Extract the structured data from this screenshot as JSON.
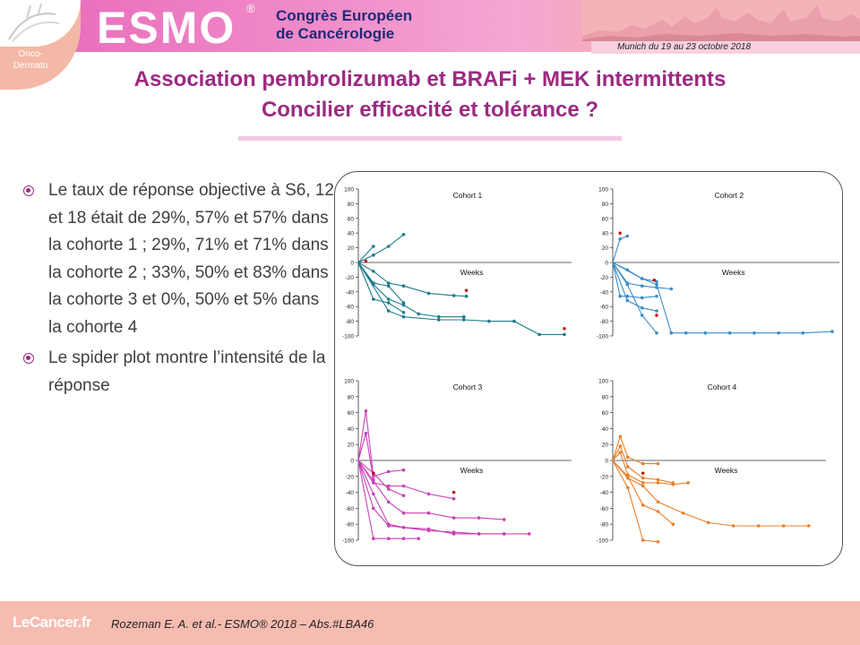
{
  "header": {
    "logo": "ESMO",
    "logo_mark": "®",
    "congress_line1": "Congrès Européen",
    "congress_line2": "de Cancérologie",
    "dates": "Munich du 19 au 23 octobre 2018",
    "corner_label": "Onco-Dermato"
  },
  "title": {
    "line1": "Association pembrolizumab et BRAFi + MEK intermittents",
    "line2": "Concilier efficacité et tolérance ?"
  },
  "bullets": [
    "Le taux de réponse objective à S6, 12 et 18 était de 29%, 57% et 57% dans la cohorte 1 ; 29%, 71% et 71% dans la cohorte 2 ; 33%, 50% et 83% dans la cohorte 3 et 0%, 50% et 5% dans la cohorte 4",
    "Le spider plot montre l’intensité de la réponse"
  ],
  "footer": {
    "logo": "LeCancer.fr",
    "reference": "Rozeman E. A. et al.- ESMO® 2018 – Abs.#LBA46"
  },
  "colors": {
    "title": "#9b2a82",
    "cohort1": "#1c7c8c",
    "cohort2": "#3c8cc8",
    "cohort3": "#c840b8",
    "cohort4": "#e8802c",
    "new_lesion_marker": "#cc0000"
  },
  "chart_data": [
    {
      "type": "line",
      "title": "Cohort 1",
      "xlabel": "Weeks",
      "ylabel": "",
      "ylim": [
        -100,
        100
      ],
      "yticks": [
        100,
        80,
        60,
        40,
        20,
        0,
        -20,
        -40,
        -60,
        -80,
        -100
      ],
      "color": "#1c7c8c",
      "series": [
        {
          "x": [
            0,
            6,
            12,
            18
          ],
          "y": [
            0,
            10,
            22,
            38
          ]
        },
        {
          "x": [
            0,
            6
          ],
          "y": [
            0,
            22
          ]
        },
        {
          "x": [
            0,
            6,
            12,
            18,
            28,
            38,
            43
          ],
          "y": [
            0,
            -12,
            -28,
            -32,
            -42,
            -45,
            -46
          ]
        },
        {
          "x": [
            0,
            6,
            12,
            18
          ],
          "y": [
            0,
            -28,
            -32,
            -55
          ]
        },
        {
          "x": [
            0,
            6,
            12,
            18,
            24,
            32,
            42
          ],
          "y": [
            0,
            -30,
            -50,
            -58,
            -70,
            -74,
            -74
          ]
        },
        {
          "x": [
            0,
            6,
            12,
            18
          ],
          "y": [
            0,
            -50,
            -55,
            -68
          ]
        },
        {
          "x": [
            0,
            12,
            18,
            32,
            42,
            52,
            62,
            72,
            82
          ],
          "y": [
            0,
            -66,
            -74,
            -78,
            -78,
            -80,
            -80,
            -98,
            -98
          ]
        }
      ],
      "new_lesion_markers": [
        {
          "x": 3,
          "y": 2
        },
        {
          "x": 43,
          "y": -38
        },
        {
          "x": 82,
          "y": -90
        }
      ]
    },
    {
      "type": "line",
      "title": "Cohort 2",
      "xlabel": "Weeks",
      "ylabel": "",
      "ylim": [
        -100,
        100
      ],
      "yticks": [
        100,
        80,
        60,
        40,
        20,
        0,
        -20,
        -40,
        -60,
        -80,
        -100
      ],
      "color": "#3c8cc8",
      "series": [
        {
          "x": [
            0,
            3,
            6
          ],
          "y": [
            0,
            32,
            36
          ]
        },
        {
          "x": [
            0,
            6,
            12,
            18
          ],
          "y": [
            0,
            -10,
            -22,
            -26
          ]
        },
        {
          "x": [
            0,
            6,
            12,
            18,
            24
          ],
          "y": [
            0,
            -28,
            -32,
            -34,
            -36
          ]
        },
        {
          "x": [
            0,
            3,
            6,
            12,
            18
          ],
          "y": [
            0,
            -46,
            -46,
            -48,
            -46
          ]
        },
        {
          "x": [
            0,
            6,
            12,
            18
          ],
          "y": [
            0,
            -52,
            -62,
            -66
          ]
        },
        {
          "x": [
            0,
            6,
            12,
            18
          ],
          "y": [
            0,
            -30,
            -72,
            -96
          ]
        },
        {
          "x": [
            0,
            12,
            18,
            24,
            30,
            38,
            48,
            58,
            68,
            78,
            90
          ],
          "y": [
            0,
            -22,
            -30,
            -96,
            -96,
            -96,
            -96,
            -96,
            -96,
            -96,
            -94
          ]
        }
      ],
      "new_lesion_markers": [
        {
          "x": 3,
          "y": 40
        },
        {
          "x": 17,
          "y": -24
        },
        {
          "x": 18,
          "y": -72
        }
      ]
    },
    {
      "type": "line",
      "title": "Cohort 3",
      "xlabel": "Weeks",
      "ylabel": "",
      "ylim": [
        -100,
        100
      ],
      "yticks": [
        100,
        80,
        60,
        40,
        20,
        0,
        -20,
        -40,
        -60,
        -80,
        -100
      ],
      "color": "#c840b8",
      "series": [
        {
          "x": [
            0,
            3,
            6,
            12,
            18
          ],
          "y": [
            0,
            62,
            -20,
            -14,
            -12
          ]
        },
        {
          "x": [
            0,
            3,
            6
          ],
          "y": [
            0,
            34,
            -24
          ]
        },
        {
          "x": [
            0,
            6,
            12,
            18,
            28,
            38
          ],
          "y": [
            0,
            -28,
            -32,
            -32,
            -42,
            -48
          ]
        },
        {
          "x": [
            0,
            6,
            12,
            18
          ],
          "y": [
            0,
            -16,
            -36,
            -44
          ]
        },
        {
          "x": [
            0,
            6,
            12,
            18,
            28,
            38,
            48,
            58
          ],
          "y": [
            0,
            -26,
            -52,
            -66,
            -66,
            -72,
            -72,
            -74
          ]
        },
        {
          "x": [
            0,
            6,
            12,
            18,
            28,
            38,
            48,
            58
          ],
          "y": [
            0,
            -42,
            -80,
            -84,
            -88,
            -90,
            -92,
            -92
          ]
        },
        {
          "x": [
            0,
            6,
            12,
            18,
            28,
            38,
            48,
            58,
            68
          ],
          "y": [
            0,
            -60,
            -82,
            -84,
            -86,
            -92,
            -92,
            -92,
            -92
          ]
        },
        {
          "x": [
            0,
            6,
            12,
            18,
            24
          ],
          "y": [
            0,
            -98,
            -98,
            -98,
            -98
          ]
        }
      ],
      "new_lesion_markers": [
        {
          "x": 6,
          "y": -16
        },
        {
          "x": 38,
          "y": -40
        }
      ]
    },
    {
      "type": "line",
      "title": "Cohort 4",
      "xlabel": "Weeks",
      "ylabel": "",
      "ylim": [
        -100,
        100
      ],
      "yticks": [
        100,
        80,
        60,
        40,
        20,
        0,
        -20,
        -40,
        -60,
        -80,
        -100
      ],
      "color": "#e8802c",
      "series": [
        {
          "x": [
            0,
            3,
            6,
            12,
            18
          ],
          "y": [
            0,
            30,
            4,
            -4,
            -4
          ]
        },
        {
          "x": [
            0,
            3,
            6,
            12,
            18,
            24
          ],
          "y": [
            0,
            18,
            -8,
            -22,
            -24,
            -28
          ]
        },
        {
          "x": [
            0,
            3,
            6,
            12,
            18,
            24,
            30
          ],
          "y": [
            0,
            10,
            -18,
            -28,
            -28,
            -30,
            -28
          ]
        },
        {
          "x": [
            0,
            6,
            12,
            18,
            28,
            38,
            48,
            58,
            68,
            78
          ],
          "y": [
            0,
            -22,
            -32,
            -52,
            -66,
            -78,
            -82,
            -82,
            -82,
            -82
          ]
        },
        {
          "x": [
            0,
            6,
            12,
            18,
            24
          ],
          "y": [
            0,
            -20,
            -56,
            -64,
            -80
          ]
        },
        {
          "x": [
            0,
            6,
            12,
            18
          ],
          "y": [
            0,
            -34,
            -100,
            -102
          ]
        }
      ],
      "new_lesion_markers": [
        {
          "x": 12,
          "y": -16
        }
      ]
    }
  ]
}
